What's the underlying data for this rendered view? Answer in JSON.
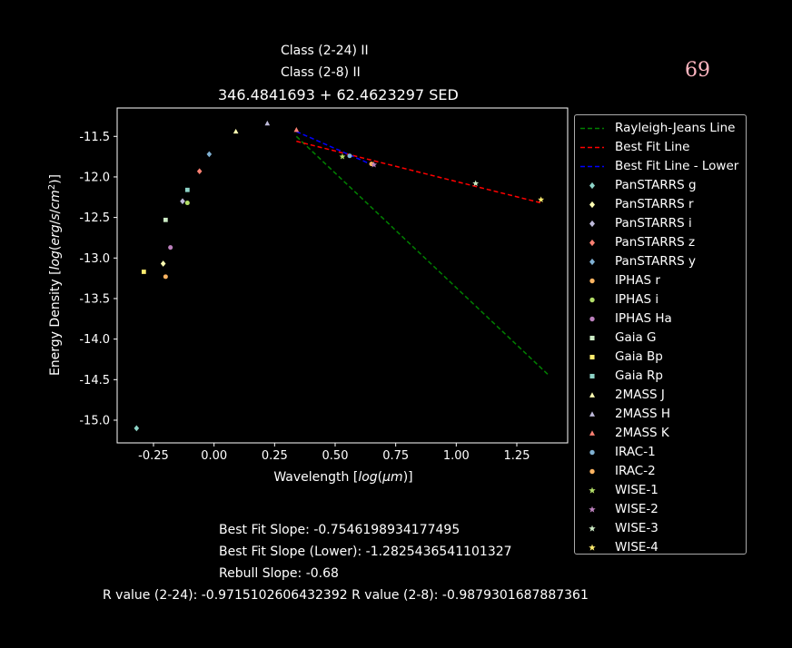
{
  "header": {
    "class_24": "Class (2-24) II",
    "class_28": "Class (2-8) II",
    "page_number": "69"
  },
  "chart_data": {
    "type": "scatter",
    "title": "346.4841693 + 62.4623297 SED",
    "xlabel": "Wavelength [log(μm)]",
    "ylabel": "Energy Density [log(erg/s/cm²)]",
    "xlim": [
      -0.4,
      1.46
    ],
    "ylim": [
      -15.28,
      -11.15
    ],
    "xticks": [
      "-0.25",
      "0.00",
      "0.25",
      "0.50",
      "0.75",
      "1.00",
      "1.25"
    ],
    "xtick_values": [
      -0.25,
      0,
      0.25,
      0.5,
      0.75,
      1.0,
      1.25
    ],
    "yticks": [
      "-11.5",
      "-12.0",
      "-12.5",
      "-13.0",
      "-13.5",
      "-14.0",
      "-14.5",
      "-15.0"
    ],
    "ytick_values": [
      -11.5,
      -12.0,
      -12.5,
      -13.0,
      -13.5,
      -14.0,
      -14.5,
      -15.0
    ],
    "lines": [
      {
        "name": "Rayleigh-Jeans Line",
        "color": "#008000",
        "dash": "dashed",
        "x": [
          0.34,
          1.38
        ],
        "y": [
          -11.5,
          -14.44
        ]
      },
      {
        "name": "Best Fit Line",
        "color": "#ff0000",
        "dash": "dashed",
        "x": [
          0.34,
          1.35
        ],
        "y": [
          -11.56,
          -12.32
        ]
      },
      {
        "name": "Best Fit Line - Lower",
        "color": "#0000ff",
        "dash": "dashed",
        "x": [
          0.34,
          0.66
        ],
        "y": [
          -11.44,
          -11.86
        ]
      }
    ],
    "series": [
      {
        "name": "PanSTARRS g",
        "marker": "diamond",
        "color": "#8dd3c7",
        "x": [
          -0.32
        ],
        "y": [
          -15.1
        ]
      },
      {
        "name": "PanSTARRS r",
        "marker": "diamond",
        "color": "#ffffb3",
        "x": [
          -0.21
        ],
        "y": [
          -13.07
        ]
      },
      {
        "name": "PanSTARRS i",
        "marker": "diamond",
        "color": "#bebada",
        "x": [
          -0.13
        ],
        "y": [
          -12.3
        ]
      },
      {
        "name": "PanSTARRS z",
        "marker": "diamond",
        "color": "#fb8072",
        "x": [
          -0.06
        ],
        "y": [
          -11.93
        ]
      },
      {
        "name": "PanSTARRS y",
        "marker": "diamond",
        "color": "#80b1d3",
        "x": [
          -0.02
        ],
        "y": [
          -11.72
        ]
      },
      {
        "name": "IPHAS r",
        "marker": "circle",
        "color": "#fdb462",
        "x": [
          -0.2
        ],
        "y": [
          -13.23
        ]
      },
      {
        "name": "IPHAS i",
        "marker": "circle",
        "color": "#b3de69",
        "x": [
          -0.11
        ],
        "y": [
          -12.32
        ]
      },
      {
        "name": "IPHAS Ha",
        "marker": "circle",
        "color": "#bc80bd",
        "x": [
          -0.18
        ],
        "y": [
          -12.87
        ]
      },
      {
        "name": "Gaia G",
        "marker": "square",
        "color": "#ccebc5",
        "x": [
          -0.2
        ],
        "y": [
          -12.53
        ]
      },
      {
        "name": "Gaia Bp",
        "marker": "square",
        "color": "#ffed6f",
        "x": [
          -0.29
        ],
        "y": [
          -13.17
        ]
      },
      {
        "name": "Gaia Rp",
        "marker": "square",
        "color": "#8dd3c7",
        "x": [
          -0.11
        ],
        "y": [
          -12.16
        ]
      },
      {
        "name": "2MASS J",
        "marker": "triangle",
        "color": "#ffffb3",
        "x": [
          0.09
        ],
        "y": [
          -11.44
        ]
      },
      {
        "name": "2MASS H",
        "marker": "triangle",
        "color": "#bebada",
        "x": [
          0.22
        ],
        "y": [
          -11.34
        ]
      },
      {
        "name": "2MASS K",
        "marker": "triangle",
        "color": "#fb8072",
        "x": [
          0.34
        ],
        "y": [
          -11.42
        ]
      },
      {
        "name": "IRAC-1",
        "marker": "circle",
        "color": "#80b1d3",
        "x": [
          0.56
        ],
        "y": [
          -11.74
        ]
      },
      {
        "name": "IRAC-2",
        "marker": "circle",
        "color": "#fdb462",
        "x": [
          0.65
        ],
        "y": [
          -11.84
        ]
      },
      {
        "name": "WISE-1",
        "marker": "star",
        "color": "#b3de69",
        "x": [
          0.53
        ],
        "y": [
          -11.75
        ]
      },
      {
        "name": "WISE-2",
        "marker": "star",
        "color": "#bc80bd",
        "x": [
          0.66
        ],
        "y": [
          -11.85
        ]
      },
      {
        "name": "WISE-3",
        "marker": "star",
        "color": "#ccebc5",
        "x": [
          1.08
        ],
        "y": [
          -12.08
        ]
      },
      {
        "name": "WISE-4",
        "marker": "star",
        "color": "#ffed6f",
        "x": [
          1.35
        ],
        "y": [
          -12.28
        ]
      }
    ],
    "legend_position": "outside-right"
  },
  "info": {
    "best_fit_slope": "Best Fit Slope: -0.7546198934177495",
    "best_fit_slope_lower": "Best Fit Slope (Lower): -1.2825436541101327",
    "rebull_slope": "Rebull Slope: -0.68",
    "r_values": "R value (2-24): -0.9715102606432392   R value (2-8): -0.9879301687887361"
  }
}
